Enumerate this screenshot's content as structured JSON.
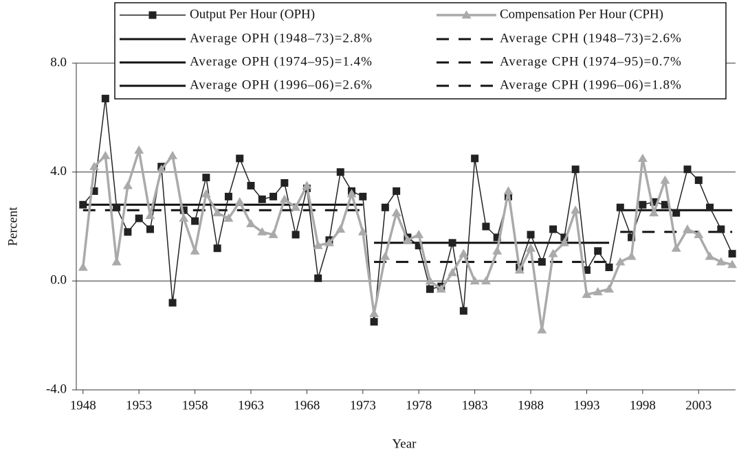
{
  "chart_data": {
    "type": "line",
    "x_label": "Year",
    "y_label": "Percent",
    "x": [
      1948,
      1949,
      1950,
      1951,
      1952,
      1953,
      1954,
      1955,
      1956,
      1957,
      1958,
      1959,
      1960,
      1961,
      1962,
      1963,
      1964,
      1965,
      1966,
      1967,
      1968,
      1969,
      1970,
      1971,
      1972,
      1973,
      1974,
      1975,
      1976,
      1977,
      1978,
      1979,
      1980,
      1981,
      1982,
      1983,
      1984,
      1985,
      1986,
      1987,
      1988,
      1989,
      1990,
      1991,
      1992,
      1993,
      1994,
      1995,
      1996,
      1997,
      1998,
      1999,
      2000,
      2001,
      2002,
      2003,
      2004,
      2005,
      2006
    ],
    "series": [
      {
        "name": "Output Per Hour (OPH)",
        "color": "#222222",
        "marker": "square",
        "values": [
          2.8,
          3.3,
          6.7,
          2.7,
          1.8,
          2.3,
          1.9,
          4.2,
          -0.8,
          2.6,
          2.2,
          3.8,
          1.2,
          3.1,
          4.5,
          3.5,
          3.0,
          3.1,
          3.6,
          1.7,
          3.4,
          0.1,
          1.5,
          4.0,
          3.3,
          3.1,
          -1.5,
          2.7,
          3.3,
          1.6,
          1.3,
          -0.3,
          -0.2,
          1.4,
          -1.1,
          4.5,
          2.0,
          1.6,
          3.1,
          0.5,
          1.7,
          0.7,
          1.9,
          1.6,
          4.1,
          0.4,
          1.1,
          0.5,
          2.7,
          1.6,
          2.8,
          2.9,
          2.8,
          2.5,
          4.1,
          3.7,
          2.7,
          1.9,
          1.0
        ]
      },
      {
        "name": "Compensation Per Hour (CPH)",
        "color": "#aaaaaa",
        "marker": "triangle",
        "values": [
          0.5,
          4.2,
          4.6,
          0.7,
          3.5,
          4.8,
          2.4,
          4.1,
          4.6,
          2.3,
          1.1,
          3.2,
          2.5,
          2.3,
          2.9,
          2.1,
          1.8,
          1.7,
          3.0,
          2.7,
          3.5,
          1.3,
          1.4,
          1.9,
          3.2,
          1.8,
          -1.2,
          0.9,
          2.5,
          1.5,
          1.7,
          0.0,
          -0.3,
          0.3,
          1.0,
          0.0,
          0.0,
          1.1,
          3.3,
          0.4,
          1.2,
          -1.8,
          1.0,
          1.4,
          2.6,
          -0.5,
          -0.4,
          -0.3,
          0.7,
          0.9,
          4.5,
          2.5,
          3.7,
          1.2,
          1.9,
          1.7,
          0.9,
          0.7,
          0.6
        ]
      }
    ],
    "averages": [
      {
        "name": "Average OPH (1948–73)=2.8%",
        "value": 2.8,
        "x": [
          1948,
          1973
        ],
        "style": "solid"
      },
      {
        "name": "Average CPH (1948–73)=2.6%",
        "value": 2.6,
        "x": [
          1948,
          1973
        ],
        "style": "dashed"
      },
      {
        "name": "Average OPH (1974–95)=1.4%",
        "value": 1.4,
        "x": [
          1974,
          1995
        ],
        "style": "solid"
      },
      {
        "name": "Average CPH (1974–95)=0.7%",
        "value": 0.7,
        "x": [
          1974,
          1995
        ],
        "style": "dashed"
      },
      {
        "name": "Average OPH (1996–06)=2.6%",
        "value": 2.6,
        "x": [
          1996,
          2006
        ],
        "style": "solid"
      },
      {
        "name": "Average CPH (1996–06)=1.8%",
        "value": 1.8,
        "x": [
          1996,
          2006
        ],
        "style": "dashed"
      }
    ],
    "xlim": [
      1947.4,
      2006.3
    ],
    "xticks": [
      1948,
      1953,
      1958,
      1963,
      1968,
      1973,
      1978,
      1983,
      1988,
      1993,
      1998,
      2003
    ],
    "ylim": [
      -4,
      8
    ],
    "yticks": [
      {
        "value": -4,
        "label": "-4.0"
      },
      {
        "value": 0,
        "label": "0.0"
      },
      {
        "value": 4,
        "label": "4.0"
      },
      {
        "value": 8,
        "label": "8.0"
      }
    ],
    "grid": true,
    "legend": "top"
  }
}
